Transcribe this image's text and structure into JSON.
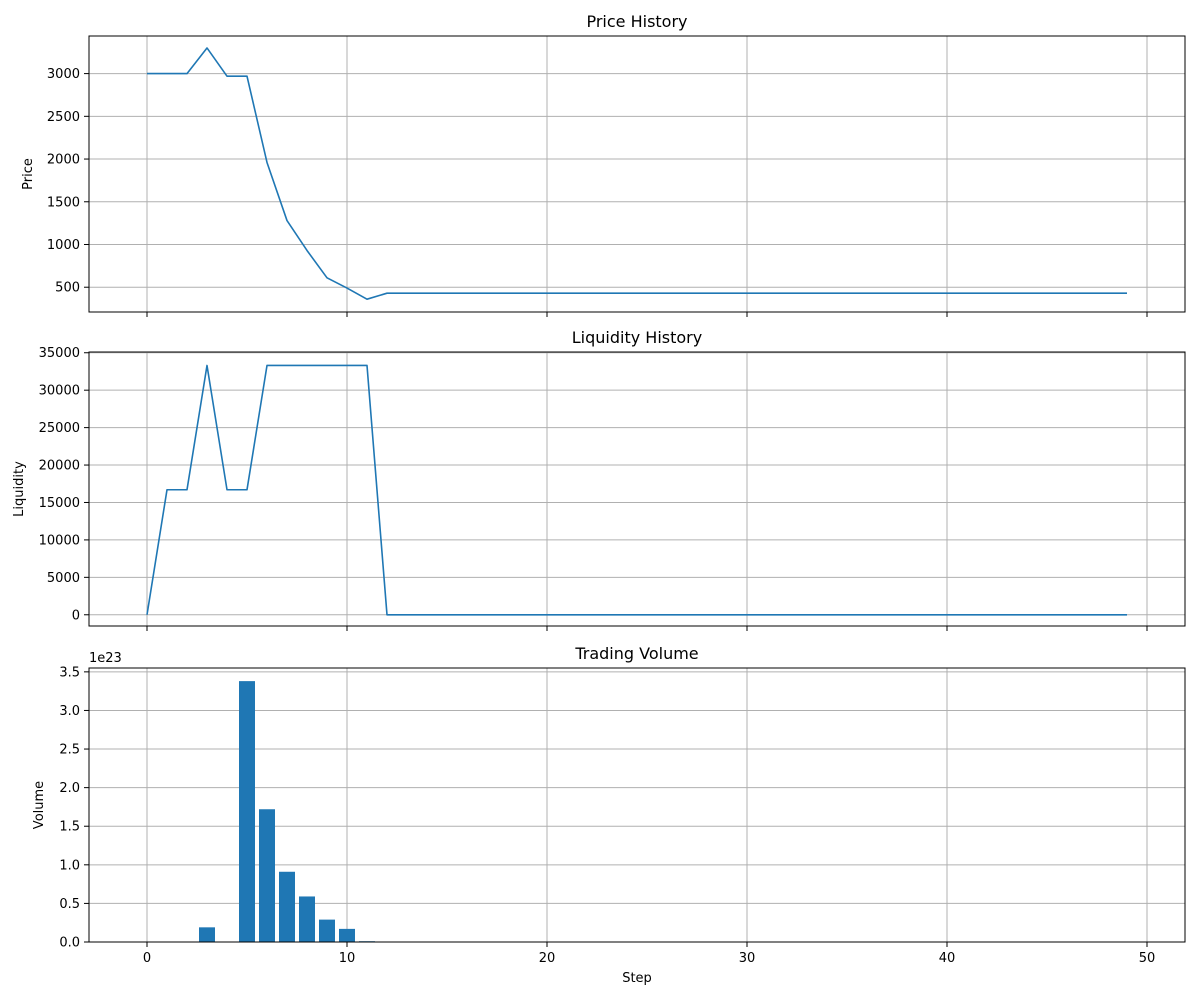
{
  "chart_data": [
    {
      "type": "line",
      "title": "Price History",
      "xlabel": "",
      "ylabel": "Price",
      "xlim": [
        -2.9,
        51.9
      ],
      "ylim": [
        210,
        3440
      ],
      "xticks": [
        0,
        10,
        20,
        30,
        40,
        50
      ],
      "show_xtick_labels": false,
      "yticks": [
        500,
        1000,
        1500,
        2000,
        2500,
        3000
      ],
      "grid": true,
      "color": "#1f77b4",
      "series": [
        {
          "x": [
            0,
            1,
            2,
            3,
            4,
            5,
            6,
            7,
            8,
            9,
            10,
            11,
            12,
            13,
            14,
            15,
            16,
            17,
            18,
            19,
            20,
            21,
            22,
            23,
            24,
            25,
            26,
            27,
            28,
            29,
            30,
            31,
            32,
            33,
            34,
            35,
            36,
            37,
            38,
            39,
            40,
            41,
            42,
            43,
            44,
            45,
            46,
            47,
            48,
            49
          ],
          "values": [
            3000,
            3000,
            3000,
            3300,
            2970,
            2970,
            1960,
            1280,
            930,
            610,
            490,
            360,
            430,
            430,
            430,
            430,
            430,
            430,
            430,
            430,
            430,
            430,
            430,
            430,
            430,
            430,
            430,
            430,
            430,
            430,
            430,
            430,
            430,
            430,
            430,
            430,
            430,
            430,
            430,
            430,
            430,
            430,
            430,
            430,
            430,
            430,
            430,
            430,
            430,
            430
          ]
        }
      ]
    },
    {
      "type": "line",
      "title": "Liquidity History",
      "xlabel": "",
      "ylabel": "Liquidity",
      "xlim": [
        -2.9,
        51.9
      ],
      "ylim": [
        -1500,
        35100
      ],
      "xticks": [
        0,
        10,
        20,
        30,
        40,
        50
      ],
      "show_xtick_labels": false,
      "yticks": [
        0,
        5000,
        10000,
        15000,
        20000,
        25000,
        30000,
        35000
      ],
      "grid": true,
      "color": "#1f77b4",
      "series": [
        {
          "x": [
            0,
            1,
            2,
            3,
            4,
            5,
            6,
            7,
            8,
            9,
            10,
            11,
            12,
            13,
            14,
            15,
            16,
            17,
            18,
            19,
            20,
            21,
            22,
            23,
            24,
            25,
            26,
            27,
            28,
            29,
            30,
            31,
            32,
            33,
            34,
            35,
            36,
            37,
            38,
            39,
            40,
            41,
            42,
            43,
            44,
            45,
            46,
            47,
            48,
            49
          ],
          "values": [
            0,
            16700,
            16700,
            33300,
            16700,
            16700,
            33300,
            33300,
            33300,
            33300,
            33300,
            33300,
            0,
            0,
            0,
            0,
            0,
            0,
            0,
            0,
            0,
            0,
            0,
            0,
            0,
            0,
            0,
            0,
            0,
            0,
            0,
            0,
            0,
            0,
            0,
            0,
            0,
            0,
            0,
            0,
            0,
            0,
            0,
            0,
            0,
            0,
            0,
            0,
            0,
            0
          ]
        }
      ]
    },
    {
      "type": "bar",
      "title": "Trading Volume",
      "xlabel": "Step",
      "ylabel": "Volume",
      "offset_text": "1e23",
      "xlim": [
        -2.9,
        51.9
      ],
      "ylim": [
        0,
        3.55
      ],
      "xticks": [
        0,
        10,
        20,
        30,
        40,
        50
      ],
      "show_xtick_labels": true,
      "yticks": [
        0.0,
        0.5,
        1.0,
        1.5,
        2.0,
        2.5,
        3.0,
        3.5
      ],
      "ytick_decimals": 1,
      "grid": true,
      "color": "#1f77b4",
      "bar_width": 0.8,
      "series": [
        {
          "x": [
            3,
            5,
            6,
            7,
            8,
            9,
            10,
            11
          ],
          "values": [
            0.19,
            3.38,
            1.72,
            0.91,
            0.59,
            0.29,
            0.17,
            0.01
          ]
        }
      ]
    }
  ]
}
